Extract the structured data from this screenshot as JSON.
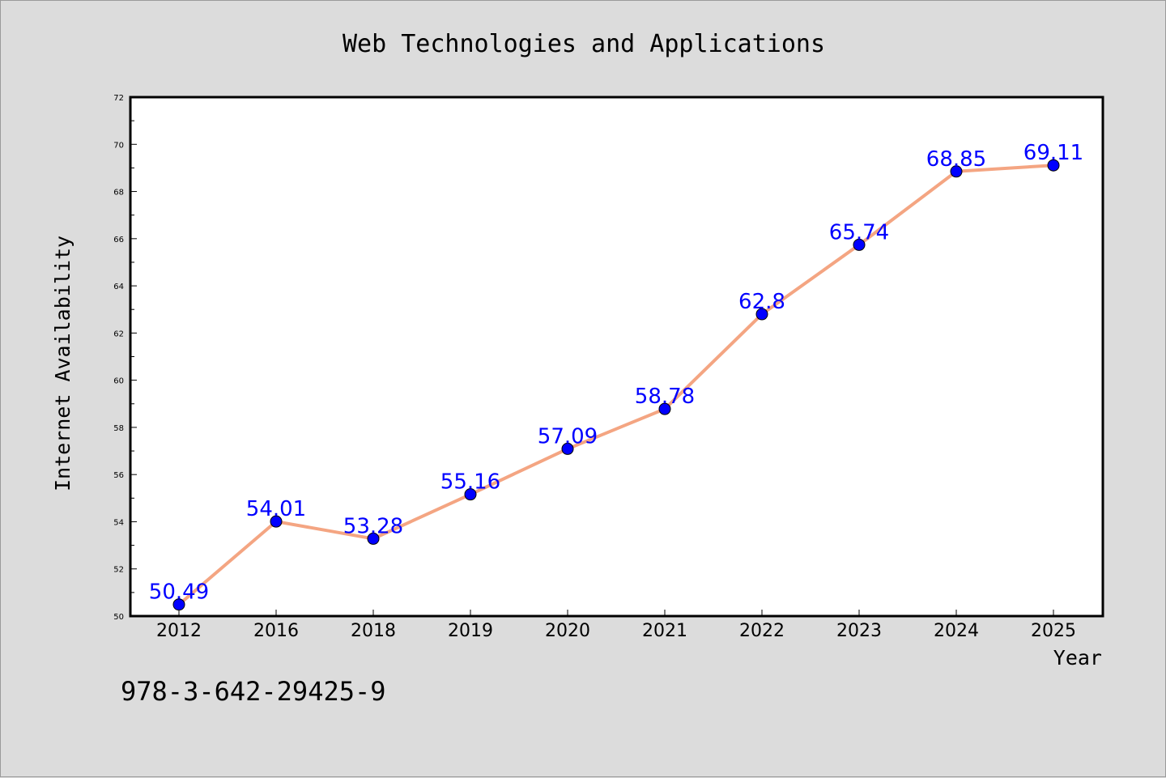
{
  "chart_data": {
    "type": "line",
    "title": "Web Technologies and Applications",
    "xlabel": "Year",
    "ylabel": "Internet Availability",
    "categories": [
      "2012",
      "2016",
      "2018",
      "2019",
      "2020",
      "2021",
      "2022",
      "2023",
      "2024",
      "2025"
    ],
    "series": [
      {
        "values": [
          50.49,
          54.01,
          53.28,
          55.16,
          57.09,
          58.78,
          62.8,
          65.74,
          68.85,
          69.11
        ]
      }
    ],
    "data_labels": [
      "50.49",
      "54.01",
      "53.28",
      "55.16",
      "57.09",
      "58.78",
      "62.8",
      "65.74",
      "68.85",
      "69.11"
    ],
    "ylim": [
      50,
      72
    ],
    "yticks": [
      50,
      52,
      54,
      56,
      58,
      60,
      62,
      64,
      66,
      68,
      70,
      72
    ],
    "grid": false,
    "colors": {
      "line": "#f4a582",
      "marker": "#0000ff",
      "label": "#0000ff",
      "background": "#dcdcdc",
      "plot_bg": "#ffffff"
    }
  },
  "footer": {
    "isbn": "978-3-642-29425-9"
  }
}
